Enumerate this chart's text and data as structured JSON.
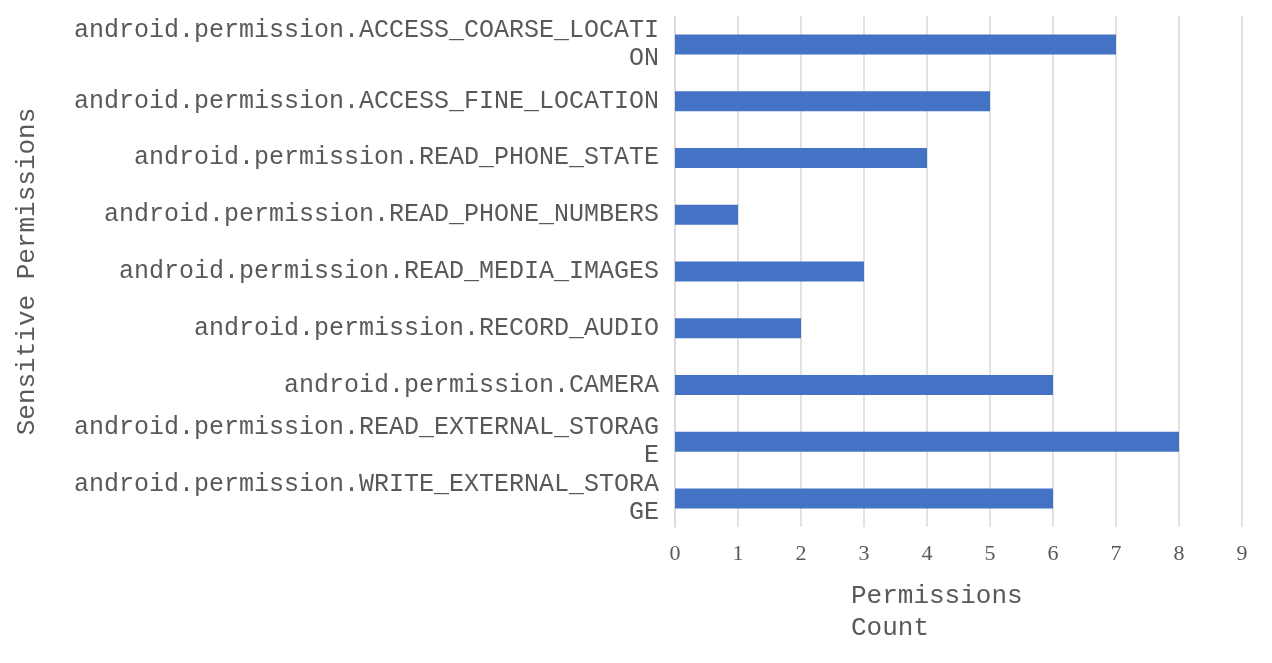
{
  "chart_data": {
    "type": "bar",
    "orientation": "horizontal",
    "xlabel": "Permissions Count",
    "ylabel": "Sensitive Permissions",
    "categories": [
      "android.permission.ACCESS_COARSE_LOCATION",
      "android.permission.ACCESS_FINE_LOCATION",
      "android.permission.READ_PHONE_STATE",
      "android.permission.READ_PHONE_NUMBERS",
      "android.permission.READ_MEDIA_IMAGES",
      "android.permission.RECORD_AUDIO",
      "android.permission.CAMERA",
      "android.permission.READ_EXTERNAL_STORAGE",
      "android.permission.WRITE_EXTERNAL_STORAGE"
    ],
    "values": [
      7,
      5,
      4,
      1,
      3,
      2,
      6,
      8,
      6
    ],
    "color": "#4472c4",
    "xlim": [
      0,
      9
    ],
    "xticks": [
      0,
      1,
      2,
      3,
      4,
      5,
      6,
      7,
      8,
      9
    ],
    "grid": "x"
  }
}
